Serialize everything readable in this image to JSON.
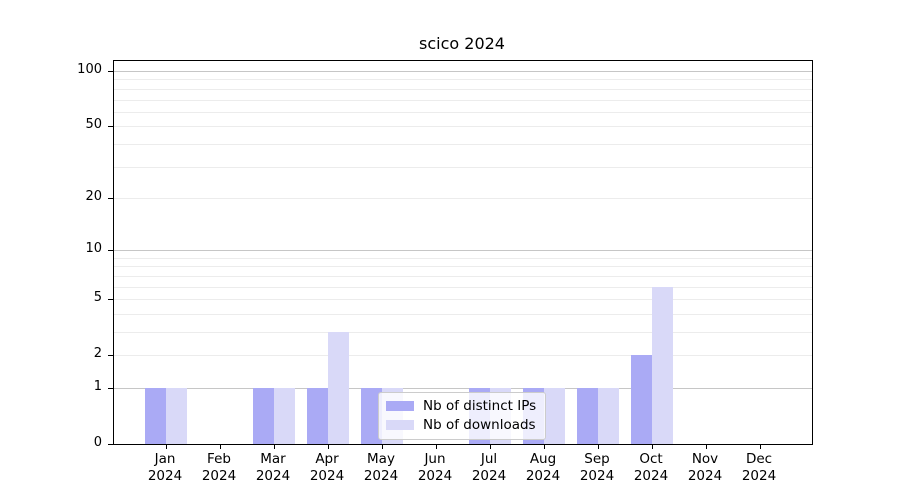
{
  "window": {
    "background": "#ffffff"
  },
  "chart_data": {
    "type": "bar",
    "title": "scico 2024",
    "xlabel": "",
    "ylabel": "",
    "year_label": "2024",
    "categories": [
      "Jan",
      "Feb",
      "Mar",
      "Apr",
      "May",
      "Jun",
      "Jul",
      "Aug",
      "Sep",
      "Oct",
      "Nov",
      "Dec"
    ],
    "series": [
      {
        "name": "Nb of distinct IPs",
        "color": "#aaaaf5",
        "values": [
          1,
          0,
          1,
          1,
          1,
          0,
          1,
          1,
          1,
          2,
          0,
          0
        ]
      },
      {
        "name": "Nb of downloads",
        "color": "#d9d9f8",
        "values": [
          1,
          0,
          1,
          3,
          1,
          0,
          1,
          1,
          1,
          6,
          0,
          0
        ]
      }
    ],
    "yscale": "log1p",
    "ylim": [
      0,
      113
    ],
    "ytick_values": [
      0,
      1,
      2,
      5,
      10,
      20,
      50,
      100
    ],
    "ytick_labels": [
      "0",
      "1",
      "2",
      "5",
      "10",
      "20",
      "50",
      "100"
    ],
    "major_gridline_values": [
      1,
      10,
      100
    ],
    "minor_gridline_values": [
      2,
      3,
      4,
      5,
      6,
      7,
      8,
      9,
      20,
      30,
      40,
      50,
      60,
      70,
      80,
      90
    ],
    "grid": true,
    "legend_position": "inside-bottom-center",
    "colors": {
      "major_grid": "#c6c6c6",
      "minor_grid": "#ececec",
      "axis": "#000000",
      "legend_border": "#cccccc",
      "legend_background": "rgba(255,255,255,0.8)"
    }
  }
}
